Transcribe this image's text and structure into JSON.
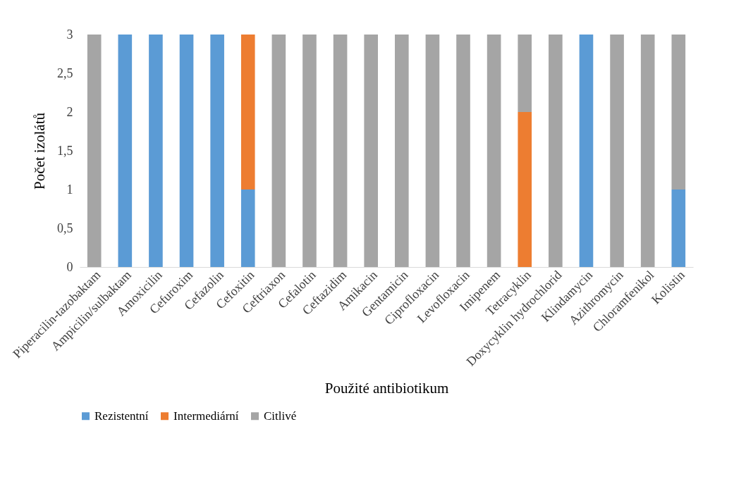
{
  "chart_data": {
    "type": "bar",
    "stacked": true,
    "xlabel": "Použité antibiotikum",
    "ylabel": "Počet izolátů",
    "categories": [
      "Piperacilin-tazobaktam",
      "Ampicilin/sulbaktam",
      "Amoxicilin",
      "Cefuroxim",
      "Cefazolin",
      "Cefoxitin",
      "Ceftriaxon",
      "Cefalotin",
      "Ceftazidim",
      "Amikacin",
      "Gentamicin",
      "Ciprofloxacin",
      "Levofloxacin",
      "Imipenem",
      "Tetracyklin",
      "Doxycyklin hydrochlorid",
      "Klindamycin",
      "Azithromycin",
      "Chloramfenikol",
      "Kolistin"
    ],
    "series": [
      {
        "name": "Rezistentní",
        "color": "#5b9bd5",
        "values": [
          0,
          3,
          3,
          3,
          3,
          1,
          0,
          0,
          0,
          0,
          0,
          0,
          0,
          0,
          0,
          0,
          3,
          0,
          0,
          1
        ]
      },
      {
        "name": "Intermediární",
        "color": "#ed7d31",
        "values": [
          0,
          0,
          0,
          0,
          0,
          2,
          0,
          0,
          0,
          0,
          0,
          0,
          0,
          0,
          2,
          0,
          0,
          0,
          0,
          0
        ]
      },
      {
        "name": "Citlivé",
        "color": "#a5a5a5",
        "values": [
          3,
          0,
          0,
          0,
          0,
          0,
          3,
          3,
          3,
          3,
          3,
          3,
          3,
          3,
          1,
          3,
          0,
          3,
          3,
          2
        ]
      }
    ],
    "ylim": [
      0,
      3
    ],
    "yticks": [
      0,
      {
        "value": 0.5,
        "label": "0,5"
      },
      1,
      {
        "value": 1.5,
        "label": "1,5"
      },
      2,
      {
        "value": 2.5,
        "label": "2,5"
      },
      3
    ],
    "legend": "bottom"
  }
}
